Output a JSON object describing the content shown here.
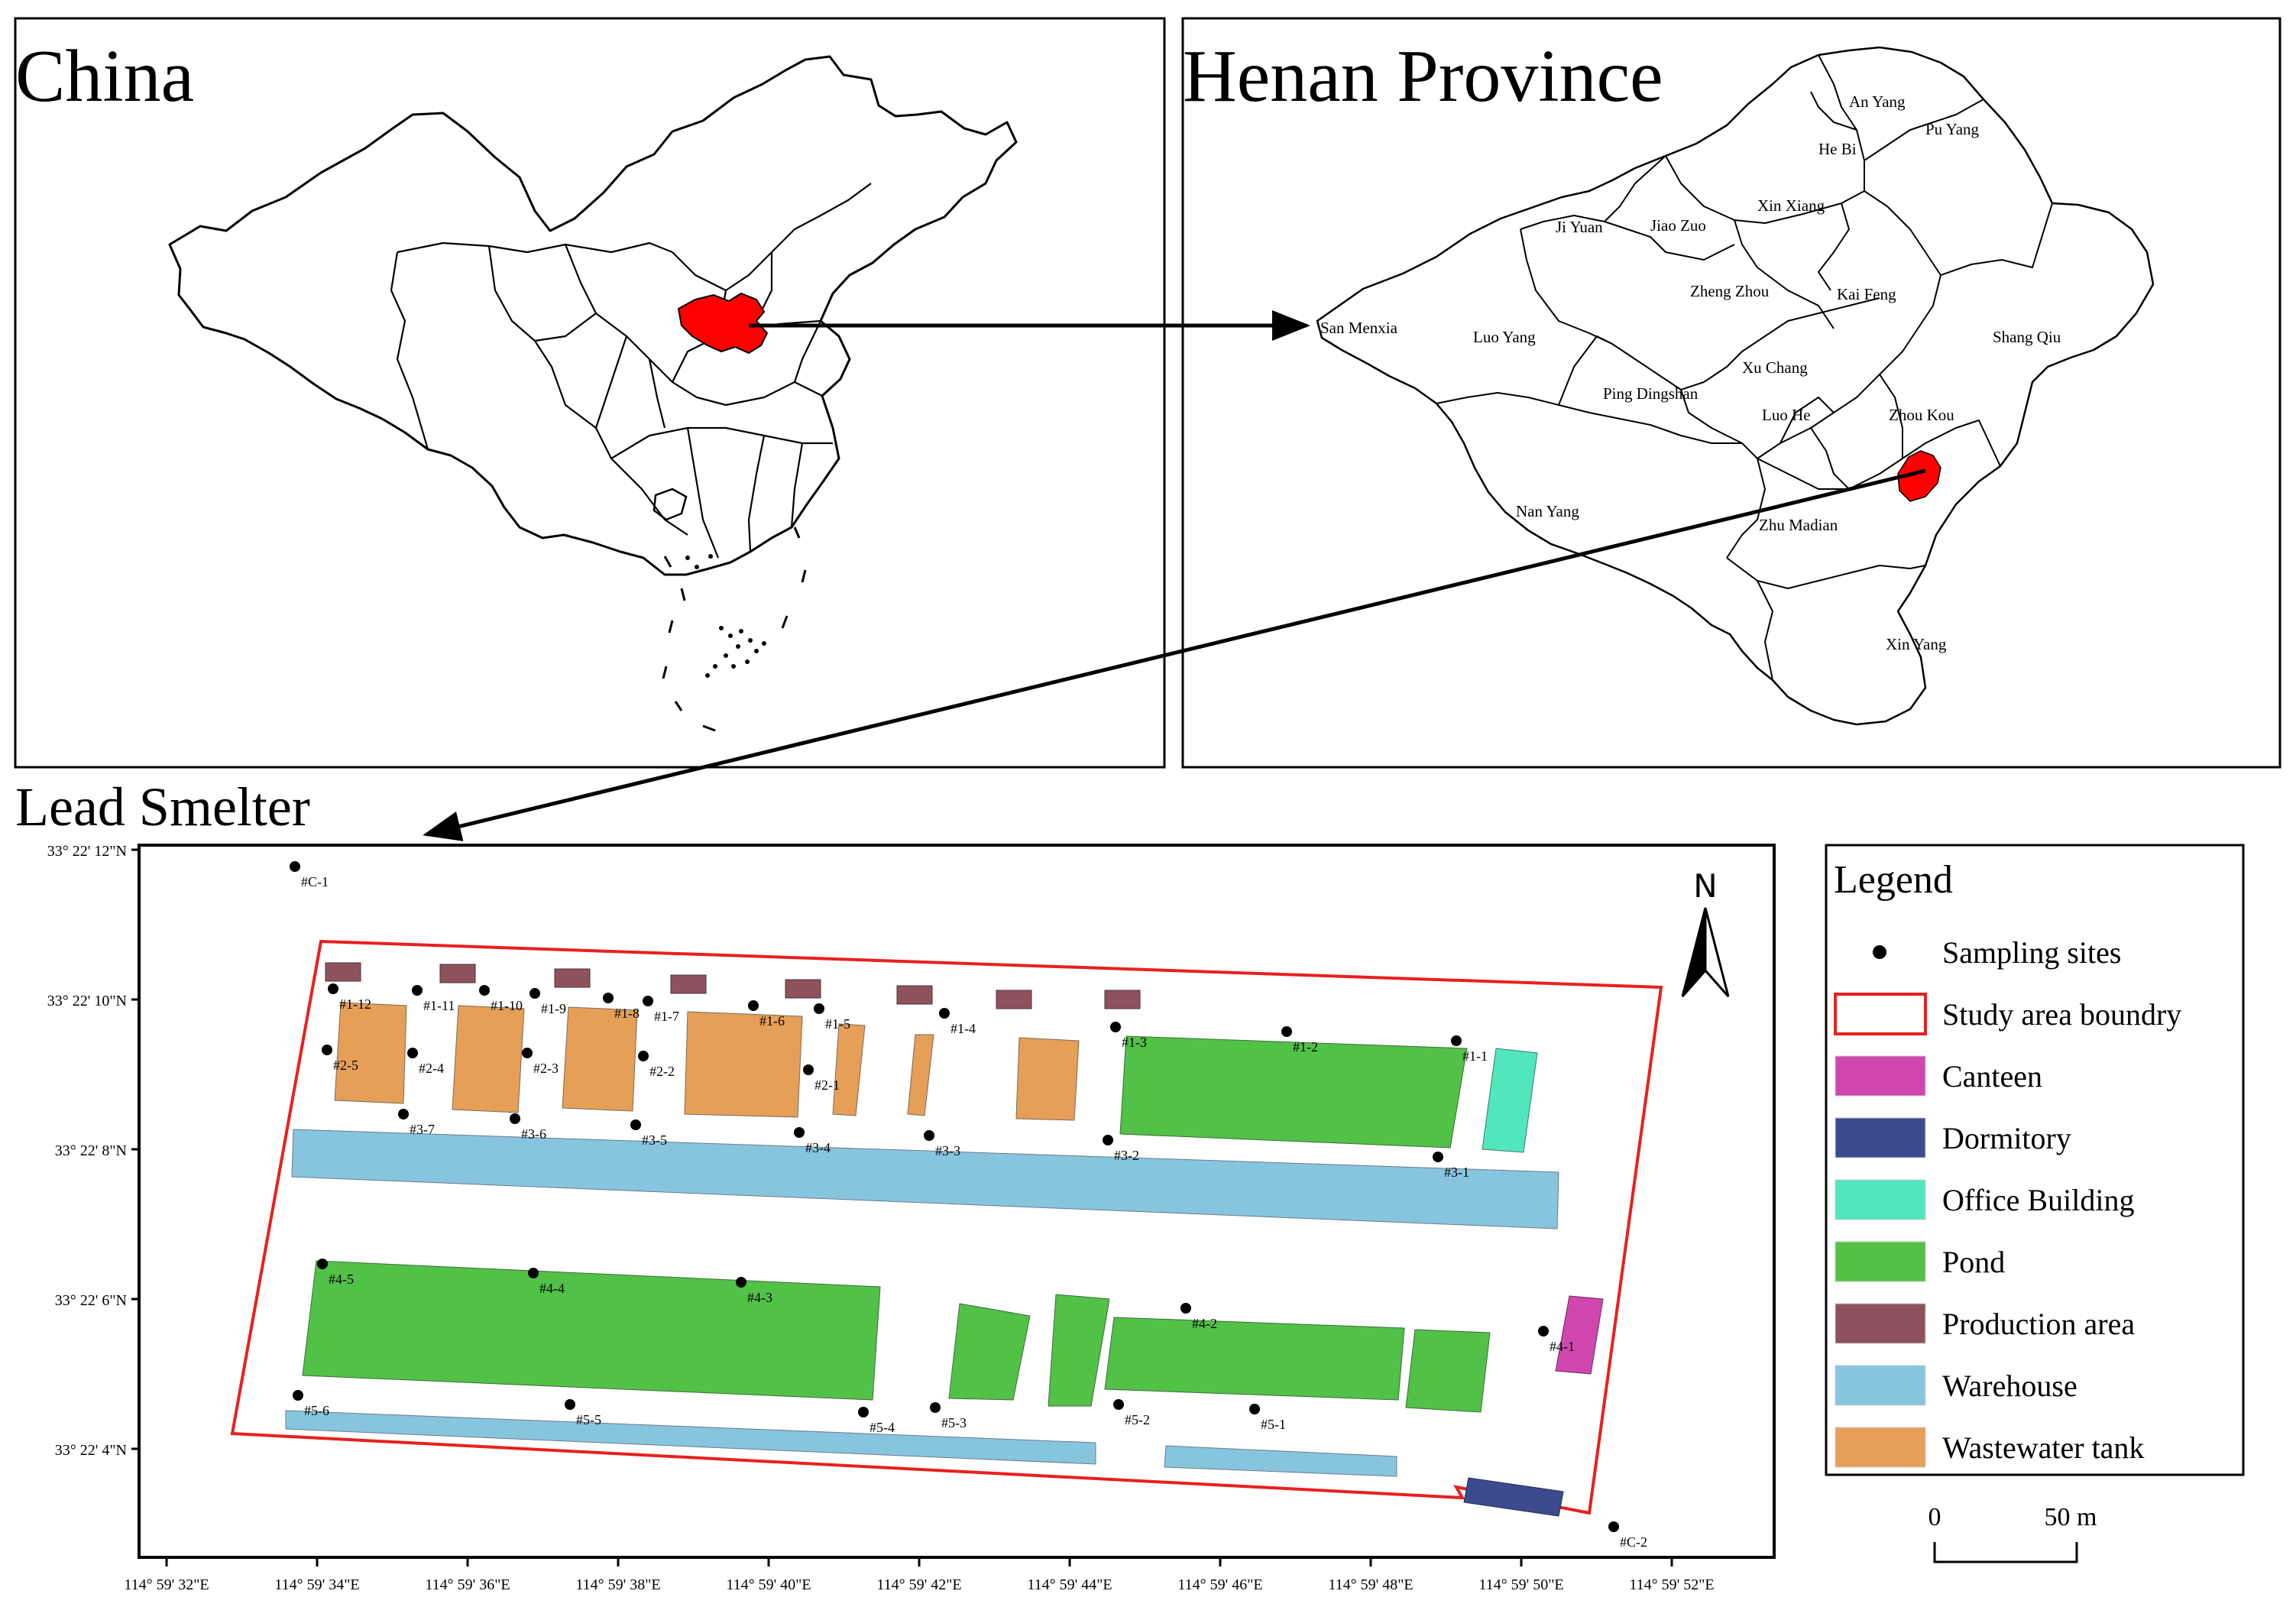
{
  "panels": {
    "china": {
      "title": "China"
    },
    "henan": {
      "title": "Henan Province",
      "cities": [
        "An Yang",
        "Pu Yang",
        "He Bi",
        "Xin Xiang",
        "Ji Yuan",
        "Jiao Zuo",
        "Zheng Zhou",
        "Kai Feng",
        "San Menxia",
        "Luo Yang",
        "Shang Qiu",
        "Xu Chang",
        "Ping Dingshan",
        "Luo He",
        "Zhou Kou",
        "Nan Yang",
        "Zhu Madian",
        "Xin Yang"
      ]
    },
    "smelter": {
      "title": "Lead Smelter",
      "north_label": "N"
    }
  },
  "axes": {
    "lat_ticks": [
      "33° 22' 12\"N",
      "33° 22' 10\"N",
      "33° 22' 8\"N",
      "33° 22' 6\"N",
      "33° 22' 4\"N"
    ],
    "lon_ticks": [
      "114° 59' 32\"E",
      "114° 59' 34\"E",
      "114° 59' 36\"E",
      "114° 59' 38\"E",
      "114° 59' 40\"E",
      "114° 59' 42\"E",
      "114° 59' 44\"E",
      "114° 59' 46\"E",
      "114° 59' 48\"E",
      "114° 59' 50\"E",
      "114° 59' 52\"E"
    ]
  },
  "sites": [
    "#C-1",
    "#1-12",
    "#1-11",
    "#1-10",
    "#1-9",
    "#1-8",
    "#1-7",
    "#1-6",
    "#1-5",
    "#1-4",
    "#1-3",
    "#1-2",
    "#1-1",
    "#2-5",
    "#2-4",
    "#2-3",
    "#2-2",
    "#2-1",
    "#3-7",
    "#3-6",
    "#3-5",
    "#3-4",
    "#3-3",
    "#3-2",
    "#3-1",
    "#4-5",
    "#4-4",
    "#4-3",
    "#4-2",
    "#4-1",
    "#5-6",
    "#5-5",
    "#5-4",
    "#5-3",
    "#5-2",
    "#5-1",
    "#C-2"
  ],
  "legend": {
    "title": "Legend",
    "items": [
      {
        "label": "Sampling sites",
        "kind": "dot",
        "color": "#000000"
      },
      {
        "label": "Study area boundry",
        "kind": "outline",
        "color": "#e8201e"
      },
      {
        "label": "Canteen",
        "kind": "fill",
        "color": "#cf47ae"
      },
      {
        "label": "Dormitory",
        "kind": "fill",
        "color": "#3c4b8e"
      },
      {
        "label": "Office Building",
        "kind": "fill",
        "color": "#52e6bd"
      },
      {
        "label": "Pond",
        "kind": "fill",
        "color": "#52c147"
      },
      {
        "label": "Production area",
        "kind": "fill",
        "color": "#8e525e"
      },
      {
        "label": "Warehouse",
        "kind": "fill",
        "color": "#87c5df"
      },
      {
        "label": "Wastewater tank",
        "kind": "fill",
        "color": "#e69f57"
      }
    ]
  },
  "scale_bar": {
    "start": "0",
    "end": "50 m"
  },
  "colors": {
    "highlight": "#ff0000",
    "boundary": "#e8201e",
    "pond": "#52c147",
    "warehouse": "#87c5df",
    "tank": "#e69f57",
    "production": "#8e525e",
    "office": "#52e6bd",
    "canteen": "#cf47ae",
    "dormitory": "#3c4b8e"
  }
}
